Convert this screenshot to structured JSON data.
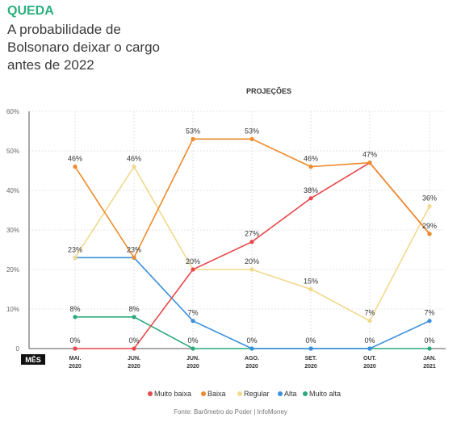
{
  "header": {
    "kicker": "QUEDA",
    "headline": "A probabilidade de Bolsonaro deixar o cargo antes de 2022"
  },
  "source": "Fonte: Barômetro do Poder | InfoMoney",
  "chart_data": {
    "type": "line",
    "title": "PROJEÇÕES",
    "xlabel": "MÊS",
    "ylabel": "",
    "ylim": [
      0,
      60
    ],
    "yticks": [
      "0",
      "10%",
      "20%",
      "30%",
      "40%",
      "50%",
      "60%"
    ],
    "categories": [
      [
        "MAI.",
        "2020"
      ],
      [
        "JUN.",
        "2020"
      ],
      [
        "JUN.",
        "2020"
      ],
      [
        "AGO.",
        "2020"
      ],
      [
        "SET.",
        "2020"
      ],
      [
        "OUT.",
        "2020"
      ],
      [
        "JAN.",
        "2021"
      ]
    ],
    "grid": true,
    "legend_position": "bottom",
    "series": [
      {
        "name": "Muito baixa",
        "color": "#e8474b",
        "values": [
          0,
          0,
          20,
          27,
          38,
          47,
          29
        ]
      },
      {
        "name": "Baixa",
        "color": "#ee8a2a",
        "values": [
          46,
          23,
          53,
          53,
          46,
          47,
          29
        ]
      },
      {
        "name": "Regular",
        "color": "#f2d98c",
        "values": [
          23,
          46,
          20,
          20,
          15,
          7,
          36
        ]
      },
      {
        "name": "Alta",
        "color": "#3b8fdc",
        "values": [
          23,
          23,
          7,
          0,
          0,
          0,
          7
        ]
      },
      {
        "name": "Muito alta",
        "color": "#2aa97a",
        "values": [
          8,
          8,
          0,
          0,
          0,
          0,
          0
        ]
      }
    ],
    "data_labels": [
      {
        "x": 0,
        "text": "46%",
        "y": 46
      },
      {
        "x": 0,
        "text": "23%",
        "y": 23
      },
      {
        "x": 0,
        "text": "8%",
        "y": 8
      },
      {
        "x": 0,
        "text": "0%",
        "y": 0
      },
      {
        "x": 1,
        "text": "46%",
        "y": 46
      },
      {
        "x": 1,
        "text": "23%",
        "y": 23
      },
      {
        "x": 1,
        "text": "8%",
        "y": 8
      },
      {
        "x": 1,
        "text": "0%",
        "y": 0
      },
      {
        "x": 2,
        "text": "53%",
        "y": 53
      },
      {
        "x": 2,
        "text": "20%",
        "y": 20
      },
      {
        "x": 2,
        "text": "7%",
        "y": 7
      },
      {
        "x": 2,
        "text": "0%",
        "y": 0
      },
      {
        "x": 3,
        "text": "53%",
        "y": 53
      },
      {
        "x": 3,
        "text": "27%",
        "y": 27
      },
      {
        "x": 3,
        "text": "20%",
        "y": 20
      },
      {
        "x": 3,
        "text": "0%",
        "y": 0
      },
      {
        "x": 4,
        "text": "46%",
        "y": 46
      },
      {
        "x": 4,
        "text": "38%",
        "y": 38
      },
      {
        "x": 4,
        "text": "15%",
        "y": 15
      },
      {
        "x": 4,
        "text": "0%",
        "y": 0
      },
      {
        "x": 5,
        "text": "47%",
        "y": 47
      },
      {
        "x": 5,
        "text": "7%",
        "y": 7
      },
      {
        "x": 5,
        "text": "0%",
        "y": 0
      },
      {
        "x": 6,
        "text": "36%",
        "y": 36
      },
      {
        "x": 6,
        "text": "29%",
        "y": 29
      },
      {
        "x": 6,
        "text": "7%",
        "y": 7
      },
      {
        "x": 6,
        "text": "0%",
        "y": 0
      }
    ]
  }
}
